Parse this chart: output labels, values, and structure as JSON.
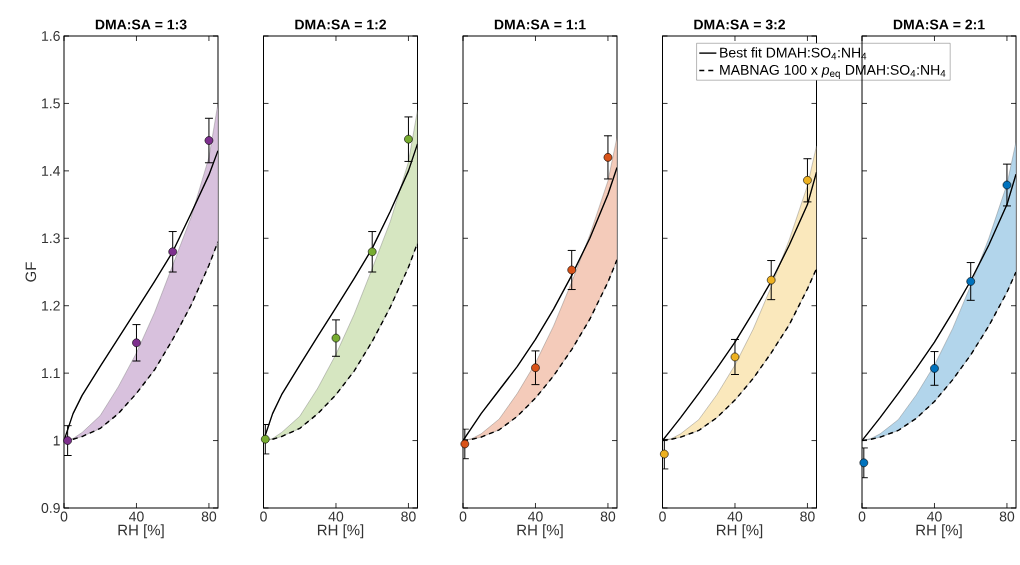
{
  "chart_data": [
    {
      "type": "scatter",
      "title": "DMA:SA = 1:3",
      "xlabel": "RH [%]",
      "ylabel": "GF",
      "xlim": [
        0,
        85
      ],
      "ylim": [
        0.9,
        1.6
      ],
      "xticks": [
        0,
        40,
        80
      ],
      "yticks": [
        0.9,
        1,
        1.1,
        1.2,
        1.3,
        1.4,
        1.5,
        1.6
      ],
      "series": [
        {
          "type": "line",
          "color": "#000000",
          "line_style": "dashed",
          "marker": "none",
          "x": [
            0,
            5,
            10,
            20,
            30,
            40,
            50,
            60,
            70,
            80,
            85
          ],
          "values": [
            1.0,
            1.002,
            1.006,
            1.018,
            1.04,
            1.07,
            1.105,
            1.15,
            1.2,
            1.26,
            1.295
          ],
          "lower": [
            1.0,
            1.002,
            1.006,
            1.018,
            1.04,
            1.07,
            1.105,
            1.15,
            1.2,
            1.26,
            1.295
          ],
          "upper": [
            1.0,
            1.003,
            1.012,
            1.037,
            1.08,
            1.13,
            1.19,
            1.26,
            1.33,
            1.42,
            1.5
          ]
        },
        {
          "type": "line",
          "color": "#000000",
          "line_style": "solid",
          "marker": "none",
          "x": [
            0,
            5,
            10,
            20,
            30,
            40,
            50,
            60,
            70,
            80,
            85
          ],
          "values": [
            1.0,
            1.04,
            1.067,
            1.11,
            1.152,
            1.194,
            1.236,
            1.28,
            1.336,
            1.394,
            1.43
          ]
        },
        {
          "color": "#7e2f8e",
          "marker": "circle",
          "x": [
            2,
            40,
            60,
            80
          ],
          "values": [
            1.0,
            1.145,
            1.28,
            1.445
          ],
          "errors": [
            0.022,
            0.027,
            0.03,
            0.033
          ]
        }
      ]
    },
    {
      "type": "scatter",
      "title": "DMA:SA = 1:2",
      "xlabel": "RH [%]",
      "xlim": [
        0,
        85
      ],
      "ylim": [
        0.9,
        1.6
      ],
      "xticks": [
        0,
        40,
        80
      ],
      "yticks": [
        0.9,
        1,
        1.1,
        1.2,
        1.3,
        1.4,
        1.5,
        1.6
      ],
      "tick_labels": "x",
      "series": [
        {
          "type": "line",
          "color": "#000000",
          "line_style": "dashed",
          "marker": "none",
          "x": [
            0,
            5,
            10,
            20,
            30,
            40,
            50,
            60,
            70,
            80,
            85
          ],
          "values": [
            1.0,
            1.002,
            1.006,
            1.018,
            1.04,
            1.068,
            1.103,
            1.147,
            1.198,
            1.257,
            1.293
          ],
          "lower": [
            1.0,
            1.002,
            1.006,
            1.018,
            1.04,
            1.068,
            1.103,
            1.147,
            1.198,
            1.257,
            1.293
          ],
          "upper": [
            1.0,
            1.003,
            1.012,
            1.036,
            1.078,
            1.128,
            1.187,
            1.255,
            1.325,
            1.413,
            1.49
          ]
        },
        {
          "type": "line",
          "color": "#000000",
          "line_style": "solid",
          "marker": "none",
          "x": [
            0,
            5,
            10,
            20,
            30,
            40,
            50,
            60,
            70,
            80,
            85
          ],
          "values": [
            1.0,
            1.04,
            1.068,
            1.112,
            1.155,
            1.197,
            1.24,
            1.285,
            1.34,
            1.4,
            1.44
          ]
        },
        {
          "color": "#77ac30",
          "marker": "circle",
          "x": [
            1,
            40,
            60,
            80
          ],
          "values": [
            1.002,
            1.152,
            1.28,
            1.447
          ],
          "errors": [
            0.022,
            0.027,
            0.03,
            0.033
          ]
        }
      ]
    },
    {
      "type": "scatter",
      "title": "DMA:SA = 1:1",
      "xlabel": "RH [%]",
      "xlim": [
        0,
        85
      ],
      "ylim": [
        0.9,
        1.6
      ],
      "xticks": [
        0,
        40,
        80
      ],
      "yticks": [
        0.9,
        1,
        1.1,
        1.2,
        1.3,
        1.4,
        1.5,
        1.6
      ],
      "tick_labels": "x",
      "series": [
        {
          "type": "line",
          "color": "#000000",
          "line_style": "dashed",
          "marker": "none",
          "x": [
            0,
            5,
            10,
            20,
            30,
            40,
            50,
            60,
            70,
            80,
            85
          ],
          "values": [
            1.0,
            1.002,
            1.005,
            1.016,
            1.036,
            1.063,
            1.096,
            1.135,
            1.18,
            1.235,
            1.268
          ],
          "lower": [
            1.0,
            1.002,
            1.005,
            1.016,
            1.036,
            1.063,
            1.096,
            1.135,
            1.18,
            1.235,
            1.268
          ],
          "upper": [
            1.0,
            1.003,
            1.01,
            1.032,
            1.07,
            1.115,
            1.17,
            1.235,
            1.305,
            1.385,
            1.45
          ]
        },
        {
          "type": "line",
          "color": "#000000",
          "line_style": "solid",
          "marker": "none",
          "x": [
            0,
            5,
            10,
            20,
            30,
            40,
            50,
            60,
            70,
            80,
            85
          ],
          "values": [
            1.0,
            1.02,
            1.04,
            1.075,
            1.11,
            1.15,
            1.195,
            1.245,
            1.3,
            1.365,
            1.405
          ]
        },
        {
          "color": "#d95319",
          "marker": "circle",
          "x": [
            1,
            40,
            60,
            80
          ],
          "values": [
            0.995,
            1.108,
            1.253,
            1.42
          ],
          "errors": [
            0.022,
            0.025,
            0.029,
            0.032
          ]
        }
      ]
    },
    {
      "type": "scatter",
      "title": "DMA:SA = 3:2",
      "xlabel": "RH [%]",
      "xlim": [
        0,
        85
      ],
      "ylim": [
        0.9,
        1.6
      ],
      "xticks": [
        0,
        40,
        80
      ],
      "yticks": [
        0.9,
        1,
        1.1,
        1.2,
        1.3,
        1.4,
        1.5,
        1.6
      ],
      "tick_labels": "x",
      "legend": "top right",
      "series": [
        {
          "type": "line",
          "name": "MABNAG 100 x *p*$_{eq}$ DMAH:SO$_{4}$:NH$_{4}$",
          "color": "#000000",
          "line_style": "dashed",
          "marker": "none",
          "x": [
            0,
            5,
            10,
            20,
            30,
            40,
            50,
            60,
            70,
            80,
            85
          ],
          "values": [
            1.0,
            1.002,
            1.005,
            1.015,
            1.034,
            1.06,
            1.092,
            1.13,
            1.172,
            1.225,
            1.255
          ],
          "lower": [
            1.0,
            1.002,
            1.005,
            1.015,
            1.034,
            1.06,
            1.092,
            1.13,
            1.172,
            1.225,
            1.255
          ],
          "upper": [
            1.0,
            1.003,
            1.01,
            1.031,
            1.068,
            1.112,
            1.165,
            1.228,
            1.298,
            1.378,
            1.437
          ]
        },
        {
          "type": "line",
          "name": "Best fit DMAH:SO$_{4}$:NH$_{4}$",
          "color": "#000000",
          "line_style": "solid",
          "marker": "none",
          "x": [
            0,
            5,
            10,
            20,
            30,
            40,
            50,
            60,
            70,
            80,
            85
          ],
          "values": [
            1.0,
            1.017,
            1.034,
            1.07,
            1.107,
            1.146,
            1.19,
            1.236,
            1.29,
            1.35,
            1.398
          ]
        },
        {
          "color": "#edb120",
          "marker": "circle",
          "x": [
            1,
            40,
            60,
            80
          ],
          "values": [
            0.98,
            1.124,
            1.238,
            1.386
          ],
          "errors": [
            0.022,
            0.026,
            0.029,
            0.032
          ]
        }
      ]
    },
    {
      "type": "scatter",
      "title": "DMA:SA = 2:1",
      "xlabel": "RH [%]",
      "xlim": [
        0,
        85
      ],
      "ylim": [
        0.9,
        1.6
      ],
      "xticks": [
        0,
        40,
        80
      ],
      "yticks": [
        0.9,
        1,
        1.1,
        1.2,
        1.3,
        1.4,
        1.5,
        1.6
      ],
      "tick_labels": "x",
      "series": [
        {
          "type": "line",
          "color": "#000000",
          "line_style": "dashed",
          "marker": "none",
          "x": [
            0,
            5,
            10,
            20,
            30,
            40,
            50,
            60,
            70,
            80,
            85
          ],
          "values": [
            1.0,
            1.002,
            1.005,
            1.015,
            1.033,
            1.058,
            1.09,
            1.127,
            1.17,
            1.22,
            1.25
          ],
          "lower": [
            1.0,
            1.002,
            1.005,
            1.015,
            1.033,
            1.058,
            1.09,
            1.127,
            1.17,
            1.22,
            1.25
          ],
          "upper": [
            1.0,
            1.003,
            1.01,
            1.031,
            1.068,
            1.112,
            1.166,
            1.23,
            1.3,
            1.38,
            1.443
          ]
        },
        {
          "type": "line",
          "color": "#000000",
          "line_style": "solid",
          "marker": "none",
          "x": [
            0,
            5,
            10,
            20,
            30,
            40,
            50,
            60,
            70,
            80,
            85
          ],
          "values": [
            1.0,
            1.017,
            1.034,
            1.07,
            1.107,
            1.146,
            1.19,
            1.237,
            1.29,
            1.35,
            1.395
          ]
        },
        {
          "color": "#0072bd",
          "marker": "circle",
          "x": [
            1,
            40,
            60,
            80
          ],
          "values": [
            0.967,
            1.107,
            1.236,
            1.379
          ],
          "errors": [
            0.022,
            0.025,
            0.028,
            0.031
          ]
        }
      ]
    }
  ]
}
